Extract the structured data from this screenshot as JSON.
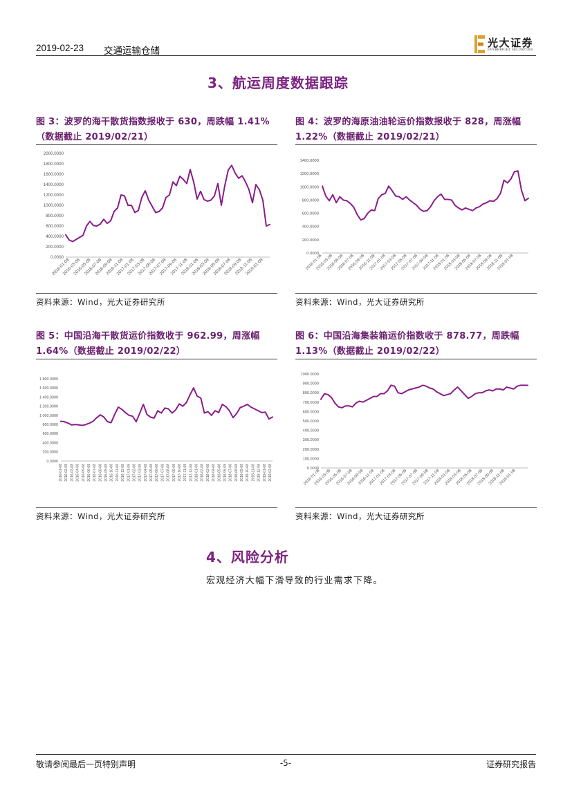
{
  "header": {
    "date": "2019-02-23",
    "industry": "交通运输仓储",
    "logo_cn": "光大证券",
    "logo_en": "EVERBRIGHT SECURITIES"
  },
  "section3": {
    "title": "3、航运周度数据跟踪"
  },
  "section4": {
    "title": "4、风险分析",
    "text": "宏观经济大幅下滑导致的行业需求下降。"
  },
  "footer": {
    "left": "敬请参阅最后一页特别声明",
    "page": "-5-",
    "right": "证券研究报告"
  },
  "colors": {
    "accent": "#7b2380",
    "series": "#8b1a8b",
    "logo": "#e0a030"
  },
  "chart_data": [
    {
      "type": "line",
      "title_lines": [
        "图 3：波罗的海干散货指数报收于 630，周跌幅 1.41%",
        "（数据截止 2019/02/21）"
      ],
      "source": "资料来源：Wind，光大证券研究所",
      "ylim": [
        0,
        2000
      ],
      "y_ticks": [
        0,
        200,
        400,
        600,
        800,
        1000,
        1200,
        1400,
        1600,
        1800,
        2000
      ],
      "y_tick_labels": [
        "0.0000",
        "200.0000",
        "400.0000",
        "600.0000",
        "800.0000",
        "1000.0000",
        "1200.0000",
        "1400.0000",
        "1600.0000",
        "1800.0000",
        "2000.0000"
      ],
      "x_tick_labels": [
        "2016-01-08",
        "2016-03-08",
        "2016-05-08",
        "2016-07-08",
        "2016-09-08",
        "2016-11-08",
        "2017-01-08",
        "2017-03-08",
        "2017-05-08",
        "2017-07-08",
        "2017-09-08",
        "2017-11-08",
        "2018-01-08",
        "2018-03-08",
        "2018-05-08",
        "2018-07-08",
        "2018-09-08",
        "2018-11-08",
        "2019-01-08"
      ],
      "series": [
        {
          "values": [
            430,
            330,
            300,
            340,
            380,
            420,
            600,
            690,
            610,
            600,
            640,
            730,
            650,
            700,
            880,
            950,
            1200,
            1180,
            1000,
            1000,
            860,
            900,
            1150,
            1280,
            1100,
            980,
            860,
            880,
            950,
            1150,
            1200,
            1450,
            1380,
            1560,
            1500,
            1420,
            1690,
            1450,
            1120,
            1270,
            1110,
            1080,
            1100,
            1180,
            1420,
            1000,
            1380,
            1680,
            1770,
            1620,
            1520,
            1570,
            1450,
            1300,
            1050,
            1400,
            1300,
            1100,
            600,
            630
          ]
        }
      ]
    },
    {
      "type": "line",
      "title_lines": [
        "图 4：波罗的海原油油轮运价指数报收于 828，周涨幅",
        "1.22%（数据截止 2019/02/21）"
      ],
      "source": "资料来源：Wind，光大证券研究所",
      "ylim": [
        0,
        1400
      ],
      "y_ticks": [
        0,
        200,
        400,
        600,
        800,
        1000,
        1200,
        1400
      ],
      "y_tick_labels": [
        "0.0000",
        "200.0000",
        "400.0000",
        "600.0000",
        "800.0000",
        "1000.0000",
        "1200.0000",
        "1400.0000"
      ],
      "x_tick_labels": [
        "2016-01-08",
        "2016-03-08",
        "2016-05-08",
        "2016-07-08",
        "2016-09-08",
        "2016-11-08",
        "2017-01-08",
        "2017-03-08",
        "2017-05-08",
        "2017-07-08",
        "2017-09-08",
        "2017-11-08",
        "2018-01-08",
        "2018-03-08",
        "2018-05-08",
        "2018-07-08",
        "2018-09-08",
        "2018-11-08",
        "2019-01-08"
      ],
      "series": [
        {
          "values": [
            1010,
            860,
            790,
            880,
            760,
            850,
            800,
            790,
            750,
            690,
            580,
            500,
            520,
            600,
            650,
            640,
            820,
            880,
            900,
            1010,
            940,
            860,
            850,
            810,
            850,
            800,
            760,
            720,
            660,
            630,
            640,
            700,
            790,
            850,
            890,
            810,
            810,
            800,
            720,
            680,
            650,
            680,
            660,
            640,
            680,
            700,
            740,
            760,
            790,
            780,
            820,
            900,
            1100,
            1060,
            1120,
            1230,
            1240,
            950,
            790,
            828
          ]
        }
      ]
    },
    {
      "type": "line",
      "title_lines": [
        "图 5：中国沿海干散货运价指数收于 962.99，周涨幅",
        "1.64%（数据截止 2019/02/22）"
      ],
      "source": "资料来源：Wind，光大证券研究所",
      "ylim": [
        0,
        1800
      ],
      "y_ticks": [
        0,
        200,
        400,
        600,
        800,
        1000,
        1200,
        1400,
        1600,
        1800
      ],
      "y_tick_labels": [
        "0.0000",
        "200.0000",
        "400.0000",
        "600.0000",
        "800.0000",
        "1 000.0000",
        "1 200.0000",
        "1 400.0000",
        "1 600.0000",
        "1 800.0000"
      ],
      "x_tick_labels": [
        "2016-01-08",
        "2016-02-08",
        "2016-03-08",
        "2016-04-08",
        "2016-05-08",
        "2016-06-08",
        "2016-07-08",
        "2016-08-08",
        "2016-09-08",
        "2016-10-08",
        "2016-11-08",
        "2016-12-08",
        "2017-01-08",
        "2017-02-08",
        "2017-03-08",
        "2017-04-08",
        "2017-05-08",
        "2017-06-08",
        "2017-07-08",
        "2017-08-08",
        "2017-09-08",
        "2017-10-08",
        "2017-11-08",
        "2017-12-08",
        "2018-01-08",
        "2018-02-08",
        "2018-03-08",
        "2018-04-08",
        "2018-05-08",
        "2018-06-08",
        "2018-07-08",
        "2018-08-08",
        "2018-09-08",
        "2018-10-08",
        "2018-11-08",
        "2018-12-08",
        "2019-01-08",
        "2019-02-08"
      ],
      "series": [
        {
          "values": [
            870,
            860,
            830,
            790,
            800,
            790,
            780,
            800,
            830,
            870,
            950,
            1010,
            960,
            860,
            840,
            1020,
            1180,
            1130,
            1060,
            1000,
            980,
            860,
            1050,
            1240,
            1020,
            960,
            940,
            1100,
            1050,
            1160,
            1140,
            1050,
            1120,
            1250,
            1200,
            1280,
            1450,
            1600,
            1420,
            1380,
            1050,
            1080,
            1000,
            1100,
            1060,
            1240,
            1190,
            1100,
            950,
            1040,
            1170,
            1200,
            1240,
            1180,
            1140,
            1100,
            1060,
            1070,
            920,
            963
          ]
        }
      ]
    },
    {
      "type": "line",
      "title_lines": [
        "图 6：中国沿海集装箱运价指数收于 878.77，周跌幅",
        "1.13%（数据截止 2019/02/22）"
      ],
      "source": "资料来源：Wind，光大证券研究所",
      "ylim": [
        0,
        1000
      ],
      "y_ticks": [
        0,
        100,
        200,
        300,
        400,
        500,
        600,
        700,
        800,
        900,
        1000
      ],
      "y_tick_labels": [
        "0.0000",
        "100.0000",
        "200.0000",
        "300.0000",
        "400.0000",
        "500.0000",
        "600.0000",
        "700.0000",
        "800.0000",
        "900.0000",
        "1000.0000"
      ],
      "x_tick_labels": [
        "2016-01-08",
        "2016-03-08",
        "2016-05-08",
        "2016-07-08",
        "2016-09-08",
        "2016-11-08",
        "2017-01-08",
        "2017-03-08",
        "2017-05-08",
        "2017-07-08",
        "2017-09-08",
        "2017-11-08",
        "2018-01-08",
        "2018-03-08",
        "2018-05-08",
        "2018-07-08",
        "2018-09-08",
        "2018-11-08",
        "2019-01-08"
      ],
      "series": [
        {
          "values": [
            730,
            790,
            780,
            750,
            690,
            650,
            640,
            660,
            660,
            650,
            690,
            710,
            700,
            720,
            740,
            760,
            760,
            790,
            790,
            820,
            880,
            870,
            800,
            790,
            810,
            830,
            840,
            850,
            860,
            880,
            870,
            850,
            840,
            810,
            790,
            770,
            780,
            790,
            830,
            860,
            820,
            780,
            740,
            760,
            790,
            800,
            800,
            820,
            830,
            820,
            840,
            840,
            830,
            860,
            850,
            840,
            870,
            880,
            880,
            879
          ]
        }
      ]
    }
  ]
}
